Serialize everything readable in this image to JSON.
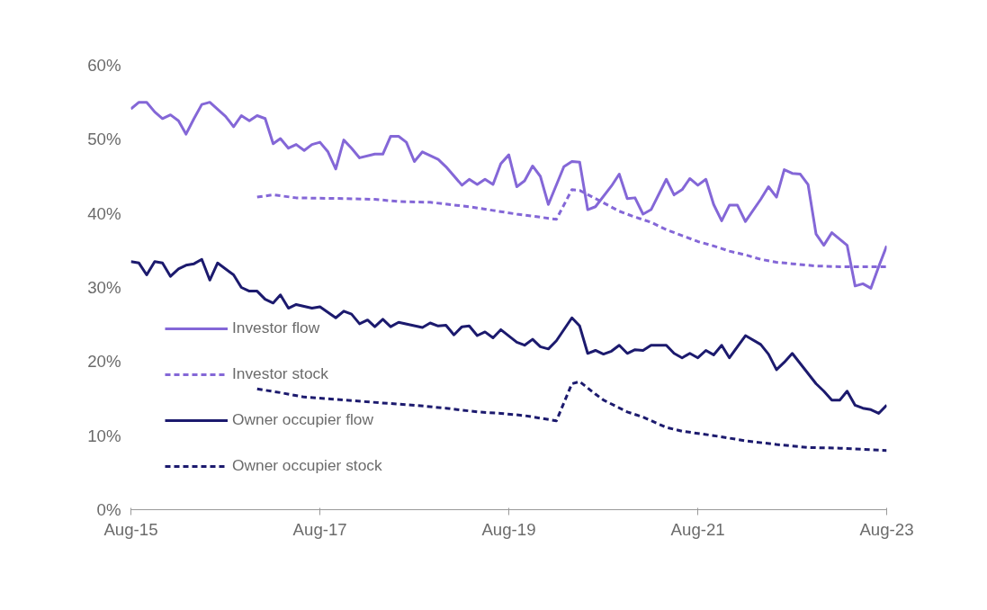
{
  "chart_data": {
    "type": "line",
    "xlim": [
      "2015-08",
      "2023-08"
    ],
    "xticks": [
      {
        "value": "2015-08",
        "label": "Aug-15"
      },
      {
        "value": "2017-08",
        "label": "Aug-17"
      },
      {
        "value": "2019-08",
        "label": "Aug-19"
      },
      {
        "value": "2021-08",
        "label": "Aug-21"
      },
      {
        "value": "2023-08",
        "label": "Aug-23"
      }
    ],
    "ylim": [
      0,
      60
    ],
    "yticks": [
      {
        "value": 0,
        "label": "0%"
      },
      {
        "value": 10,
        "label": "10%"
      },
      {
        "value": 20,
        "label": "20%"
      },
      {
        "value": 30,
        "label": "30%"
      },
      {
        "value": 40,
        "label": "40%"
      },
      {
        "value": 50,
        "label": "50%"
      },
      {
        "value": 60,
        "label": "60%"
      }
    ],
    "grid": false,
    "legend": "left",
    "series": [
      {
        "name": "Investor flow",
        "color": "#8467d7",
        "line_style": "solid",
        "x": [
          "2015-08",
          "2015-09",
          "2015-10",
          "2015-11",
          "2015-12",
          "2016-01",
          "2016-02",
          "2016-03",
          "2016-04",
          "2016-05",
          "2016-06",
          "2016-08",
          "2016-09",
          "2016-10",
          "2016-11",
          "2016-12",
          "2017-01",
          "2017-02",
          "2017-03",
          "2017-04",
          "2017-05",
          "2017-06",
          "2017-07",
          "2017-08",
          "2017-09",
          "2017-10",
          "2017-11",
          "2017-12",
          "2018-01",
          "2018-03",
          "2018-04",
          "2018-05",
          "2018-06",
          "2018-07",
          "2018-08",
          "2018-09",
          "2018-11",
          "2018-12",
          "2019-02",
          "2019-03",
          "2019-04",
          "2019-05",
          "2019-06",
          "2019-07",
          "2019-08",
          "2019-09",
          "2019-10",
          "2019-11",
          "2019-12",
          "2020-01",
          "2020-03",
          "2020-04",
          "2020-05",
          "2020-06",
          "2020-07",
          "2020-09",
          "2020-10",
          "2020-11",
          "2020-12",
          "2021-01",
          "2021-02",
          "2021-04",
          "2021-05",
          "2021-06",
          "2021-07",
          "2021-08",
          "2021-09",
          "2021-10",
          "2021-11",
          "2021-12",
          "2022-01",
          "2022-02",
          "2022-04",
          "2022-05",
          "2022-06",
          "2022-07",
          "2022-08",
          "2022-09",
          "2022-10",
          "2022-11",
          "2022-12",
          "2023-01",
          "2023-03",
          "2023-04",
          "2023-05",
          "2023-06",
          "2023-07",
          "2023-08"
        ],
        "values": [
          54.1,
          55,
          55,
          53.7,
          52.8,
          53.3,
          52.5,
          50.7,
          52.8,
          54.7,
          55,
          53.1,
          51.7,
          53.2,
          52.5,
          53.2,
          52.8,
          49.4,
          50.1,
          48.8,
          49.3,
          48.5,
          49.3,
          49.6,
          48.3,
          46,
          49.9,
          48.8,
          47.5,
          48,
          48,
          50.4,
          50.4,
          49.6,
          47,
          48.3,
          47.3,
          46.3,
          43.8,
          44.6,
          43.9,
          44.6,
          43.9,
          46.7,
          47.9,
          43.6,
          44.4,
          46.4,
          45,
          41.2,
          46.3,
          47,
          46.9,
          40.5,
          40.9,
          43.7,
          45.3,
          42,
          42.1,
          39.9,
          40.5,
          44.6,
          42.5,
          43.2,
          44.7,
          43.8,
          44.6,
          41.2,
          39,
          41.1,
          41.1,
          38.9,
          41.9,
          43.6,
          42.2,
          45.9,
          45.4,
          45.3,
          43.9,
          37.2,
          35.7,
          37.4,
          35.7,
          30.2,
          30.5,
          29.9,
          32.8,
          35.6
        ]
      },
      {
        "name": "Investor stock",
        "color": "#8467d7",
        "line_style": "dashed",
        "x": [
          "2016-12",
          "2017-02",
          "2017-05",
          "2017-11",
          "2018-03",
          "2018-06",
          "2018-10",
          "2019-03",
          "2019-06",
          "2019-09",
          "2020-02",
          "2020-04",
          "2020-05",
          "2020-07",
          "2020-10",
          "2020-12",
          "2021-02",
          "2021-04",
          "2021-06",
          "2021-08",
          "2021-10",
          "2021-12",
          "2022-02",
          "2022-04",
          "2022-06",
          "2022-08",
          "2022-11",
          "2023-02",
          "2023-08"
        ],
        "values": [
          42.2,
          42.5,
          42.1,
          42,
          41.9,
          41.6,
          41.5,
          40.9,
          40.4,
          39.9,
          39.2,
          43.2,
          43.1,
          42,
          40.3,
          39.5,
          38.8,
          37.8,
          37,
          36.2,
          35.6,
          34.9,
          34.4,
          33.8,
          33.4,
          33.2,
          32.9,
          32.8,
          32.8
        ]
      },
      {
        "name": "Owner occupier flow",
        "color": "#1c1a6e",
        "line_style": "solid",
        "x": [
          "2015-08",
          "2015-09",
          "2015-10",
          "2015-11",
          "2015-12",
          "2016-01",
          "2016-02",
          "2016-03",
          "2016-04",
          "2016-05",
          "2016-06",
          "2016-07",
          "2016-09",
          "2016-10",
          "2016-11",
          "2016-12",
          "2017-01",
          "2017-02",
          "2017-03",
          "2017-04",
          "2017-05",
          "2017-07",
          "2017-08",
          "2017-10",
          "2017-11",
          "2017-12",
          "2018-01",
          "2018-02",
          "2018-03",
          "2018-04",
          "2018-05",
          "2018-06",
          "2018-09",
          "2018-10",
          "2018-11",
          "2018-12",
          "2019-01",
          "2019-02",
          "2019-03",
          "2019-04",
          "2019-05",
          "2019-06",
          "2019-07",
          "2019-09",
          "2019-10",
          "2019-11",
          "2019-12",
          "2020-01",
          "2020-02",
          "2020-04",
          "2020-05",
          "2020-06",
          "2020-07",
          "2020-08",
          "2020-09",
          "2020-10",
          "2020-11",
          "2020-12",
          "2021-01",
          "2021-02",
          "2021-04",
          "2021-05",
          "2021-06",
          "2021-07",
          "2021-08",
          "2021-09",
          "2021-10",
          "2021-11",
          "2021-12",
          "2022-02",
          "2022-04",
          "2022-05",
          "2022-06",
          "2022-07",
          "2022-08",
          "2022-11",
          "2022-12",
          "2023-01",
          "2023-02",
          "2023-03",
          "2023-04",
          "2023-05",
          "2023-06",
          "2023-07",
          "2023-08"
        ],
        "values": [
          33.5,
          33.3,
          31.7,
          33.5,
          33.3,
          31.5,
          32.5,
          33,
          33.2,
          33.8,
          31,
          33.3,
          31.7,
          30,
          29.5,
          29.5,
          28.4,
          27.9,
          29,
          27.2,
          27.7,
          27.2,
          27.4,
          25.9,
          26.8,
          26.4,
          25.1,
          25.6,
          24.7,
          25.7,
          24.7,
          25.3,
          24.6,
          25.2,
          24.8,
          24.9,
          23.6,
          24.7,
          24.8,
          23.5,
          24,
          23.2,
          24.3,
          22.6,
          22.2,
          23,
          22,
          21.7,
          22.8,
          25.9,
          24.8,
          21.1,
          21.5,
          21,
          21.4,
          22.2,
          21.1,
          21.6,
          21.5,
          22.2,
          22.2,
          21.1,
          20.5,
          21.1,
          20.5,
          21.5,
          20.9,
          22.2,
          20.5,
          23.5,
          22.3,
          21,
          18.9,
          19.9,
          21.1,
          17,
          16,
          14.8,
          14.8,
          16,
          14.1,
          13.7,
          13.5,
          13,
          14.1
        ]
      },
      {
        "name": "Owner occupier stock",
        "color": "#1c1a6e",
        "line_style": "dashed",
        "x": [
          "2016-12",
          "2017-03",
          "2017-06",
          "2017-11",
          "2018-04",
          "2018-08",
          "2018-12",
          "2019-04",
          "2019-07",
          "2019-10",
          "2020-02",
          "2020-04",
          "2020-05",
          "2020-07",
          "2020-08",
          "2020-11",
          "2021-01",
          "2021-04",
          "2021-06",
          "2021-10",
          "2022-02",
          "2022-06",
          "2022-10",
          "2023-02",
          "2023-08"
        ],
        "values": [
          16.3,
          15.8,
          15.2,
          14.8,
          14.4,
          14.1,
          13.7,
          13.2,
          13,
          12.7,
          12,
          17,
          17.3,
          15.6,
          14.8,
          13.2,
          12.5,
          11.1,
          10.6,
          10,
          9.3,
          8.8,
          8.4,
          8.3,
          8
        ]
      }
    ]
  }
}
